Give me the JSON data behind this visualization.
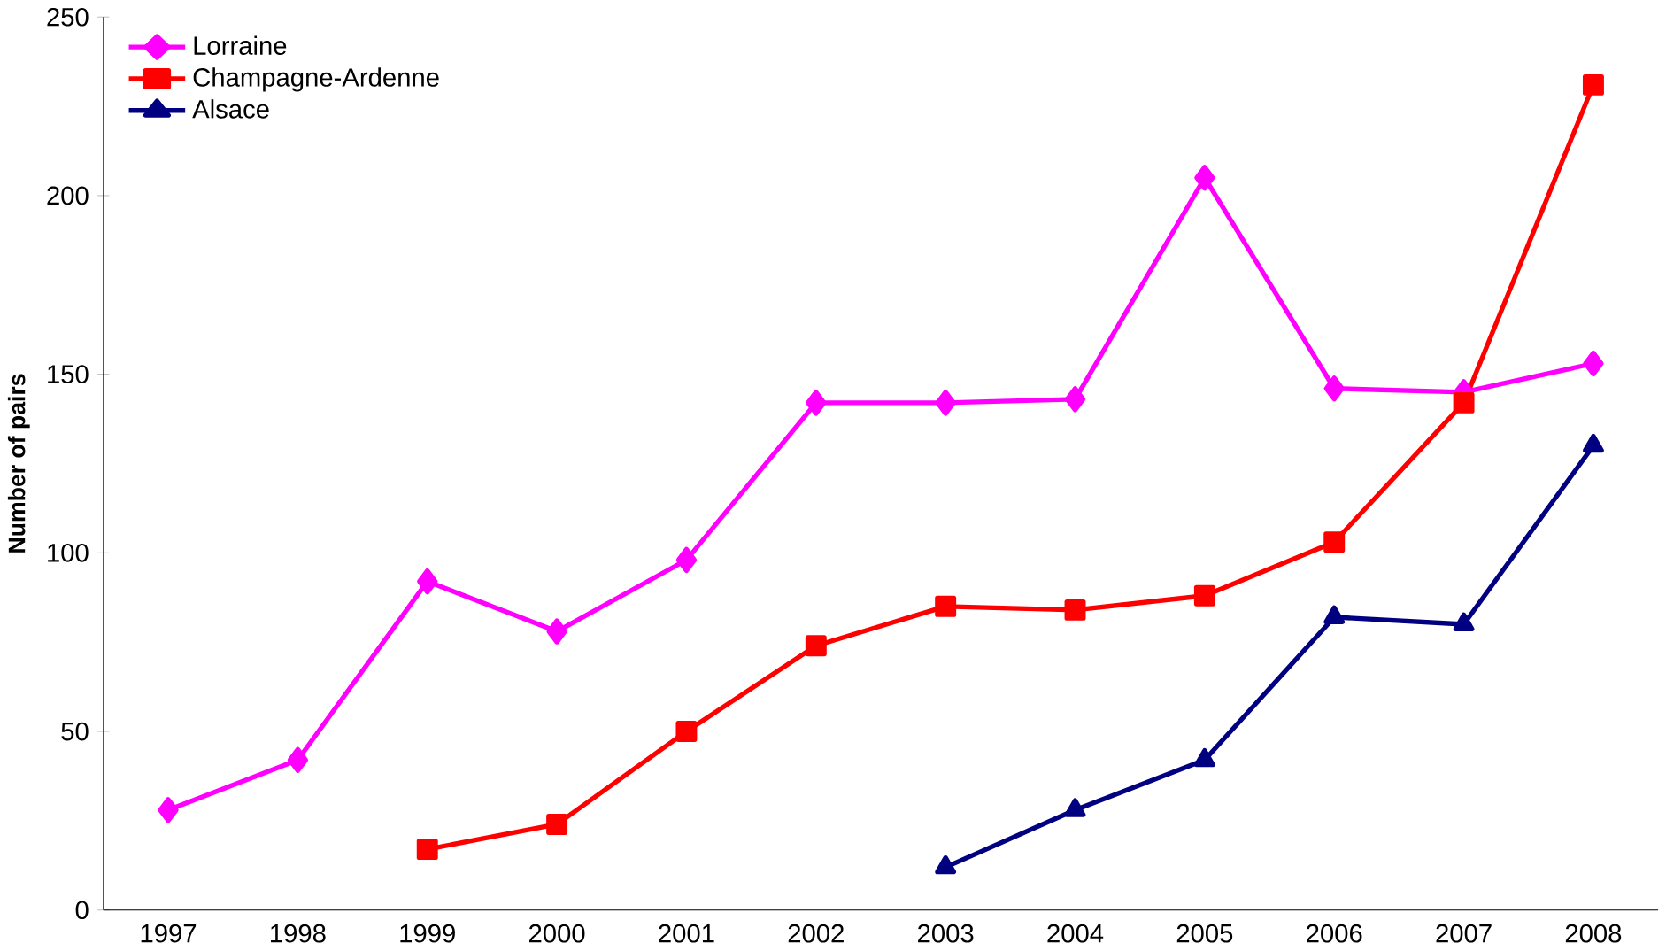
{
  "chart_data": {
    "type": "line",
    "ylabel": "Number of pairs",
    "categories": [
      "1997",
      "1998",
      "1999",
      "2000",
      "2001",
      "2002",
      "2003",
      "2004",
      "2005",
      "2006",
      "2007",
      "2008"
    ],
    "series": [
      {
        "name": "Lorraine",
        "color": "#ff00ff",
        "marker": "diamond",
        "values": [
          28,
          42,
          92,
          78,
          98,
          142,
          142,
          143,
          205,
          146,
          145,
          153
        ]
      },
      {
        "name": "Champagne-Ardenne",
        "color": "#ff0000",
        "marker": "square",
        "values": [
          null,
          null,
          17,
          24,
          50,
          74,
          85,
          84,
          88,
          103,
          142,
          231
        ]
      },
      {
        "name": "Alsace",
        "color": "#000080",
        "marker": "triangle",
        "values": [
          null,
          null,
          null,
          null,
          null,
          null,
          12,
          28,
          42,
          82,
          80,
          130
        ]
      }
    ],
    "ylim": [
      0,
      250
    ],
    "yticks": [
      0,
      50,
      100,
      150,
      200,
      250
    ],
    "grid": false,
    "legend": "top left",
    "line_style": "solid"
  }
}
